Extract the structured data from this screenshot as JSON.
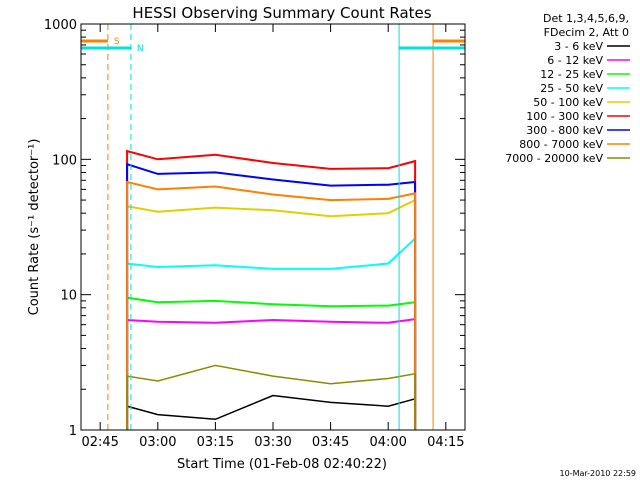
{
  "chart_data": {
    "type": "line",
    "title": "HESSI Observing Summary Count Rates",
    "xlabel": "Start Time (01-Feb-08 02:40:22)",
    "ylabel": "Count Rate (s⁻¹ detector⁻¹)",
    "yscale": "log",
    "ylim": [
      1,
      1000
    ],
    "xlim": [
      "02:40",
      "04:20"
    ],
    "x_ticks": [
      "02:45",
      "03:00",
      "03:15",
      "03:30",
      "03:45",
      "04:00",
      "04:15"
    ],
    "y_ticks": [
      "1",
      "10",
      "100",
      "1000"
    ],
    "legend": {
      "header": [
        "Det 1,3,4,5,6,9,",
        "FDecim 2, Att 0"
      ],
      "placement": "right"
    },
    "markers": [
      {
        "label": "S",
        "time": "02:47",
        "color": "#ff8000"
      },
      {
        "label": "N",
        "time": "02:53",
        "color": "#00e0e0"
      }
    ],
    "series": [
      {
        "name": "3 - 6 keV",
        "color": "#000000",
        "x": [
          "02:52",
          "03:00",
          "03:15",
          "03:30",
          "03:45",
          "04:00",
          "04:07"
        ],
        "y": [
          1.5,
          1.3,
          1.2,
          1.8,
          1.6,
          1.5,
          1.7
        ]
      },
      {
        "name": "6 - 12 keV",
        "color": "#ff00ff",
        "x": [
          "02:52",
          "03:00",
          "03:15",
          "03:30",
          "03:45",
          "04:00",
          "04:07"
        ],
        "y": [
          6.5,
          6.3,
          6.2,
          6.5,
          6.3,
          6.2,
          6.6
        ]
      },
      {
        "name": "12 - 25 keV",
        "color": "#00ff00",
        "x": [
          "02:52",
          "03:00",
          "03:15",
          "03:30",
          "03:45",
          "04:00",
          "04:07"
        ],
        "y": [
          9.5,
          8.8,
          9.0,
          8.5,
          8.2,
          8.3,
          8.8
        ]
      },
      {
        "name": "25 - 50 keV",
        "color": "#00ffff",
        "x": [
          "02:52",
          "03:00",
          "03:15",
          "03:30",
          "03:45",
          "04:00",
          "04:07"
        ],
        "y": [
          17,
          16,
          16.5,
          15.5,
          15.5,
          17,
          26
        ]
      },
      {
        "name": "50 - 100 keV",
        "color": "#e0d000",
        "x": [
          "02:52",
          "03:00",
          "03:15",
          "03:30",
          "03:45",
          "04:00",
          "04:07"
        ],
        "y": [
          45,
          41,
          44,
          42,
          38,
          40,
          50
        ]
      },
      {
        "name": "100 - 300 keV",
        "color": "#ff0000",
        "x": [
          "02:52",
          "03:00",
          "03:15",
          "03:30",
          "03:45",
          "04:00",
          "04:07"
        ],
        "y": [
          115,
          100,
          108,
          94,
          85,
          86,
          97
        ]
      },
      {
        "name": "300 - 800 keV",
        "color": "#0000ff",
        "x": [
          "02:52",
          "03:00",
          "03:15",
          "03:30",
          "03:45",
          "04:00",
          "04:07"
        ],
        "y": [
          92,
          78,
          80,
          71,
          64,
          65,
          68
        ]
      },
      {
        "name": "800 - 7000 keV",
        "color": "#ff8000",
        "x": [
          "02:52",
          "03:00",
          "03:15",
          "03:30",
          "03:45",
          "04:00",
          "04:07"
        ],
        "y": [
          68,
          60,
          63,
          55,
          50,
          51,
          56
        ]
      },
      {
        "name": "7000 - 20000 keV",
        "color": "#8c8c00",
        "x": [
          "02:52",
          "03:00",
          "03:15",
          "03:30",
          "03:45",
          "04:00",
          "04:07"
        ],
        "y": [
          2.5,
          2.3,
          3.0,
          2.5,
          2.2,
          2.4,
          2.6
        ]
      }
    ]
  },
  "footer": {
    "timestamp": "10-Mar-2010 22:59"
  }
}
